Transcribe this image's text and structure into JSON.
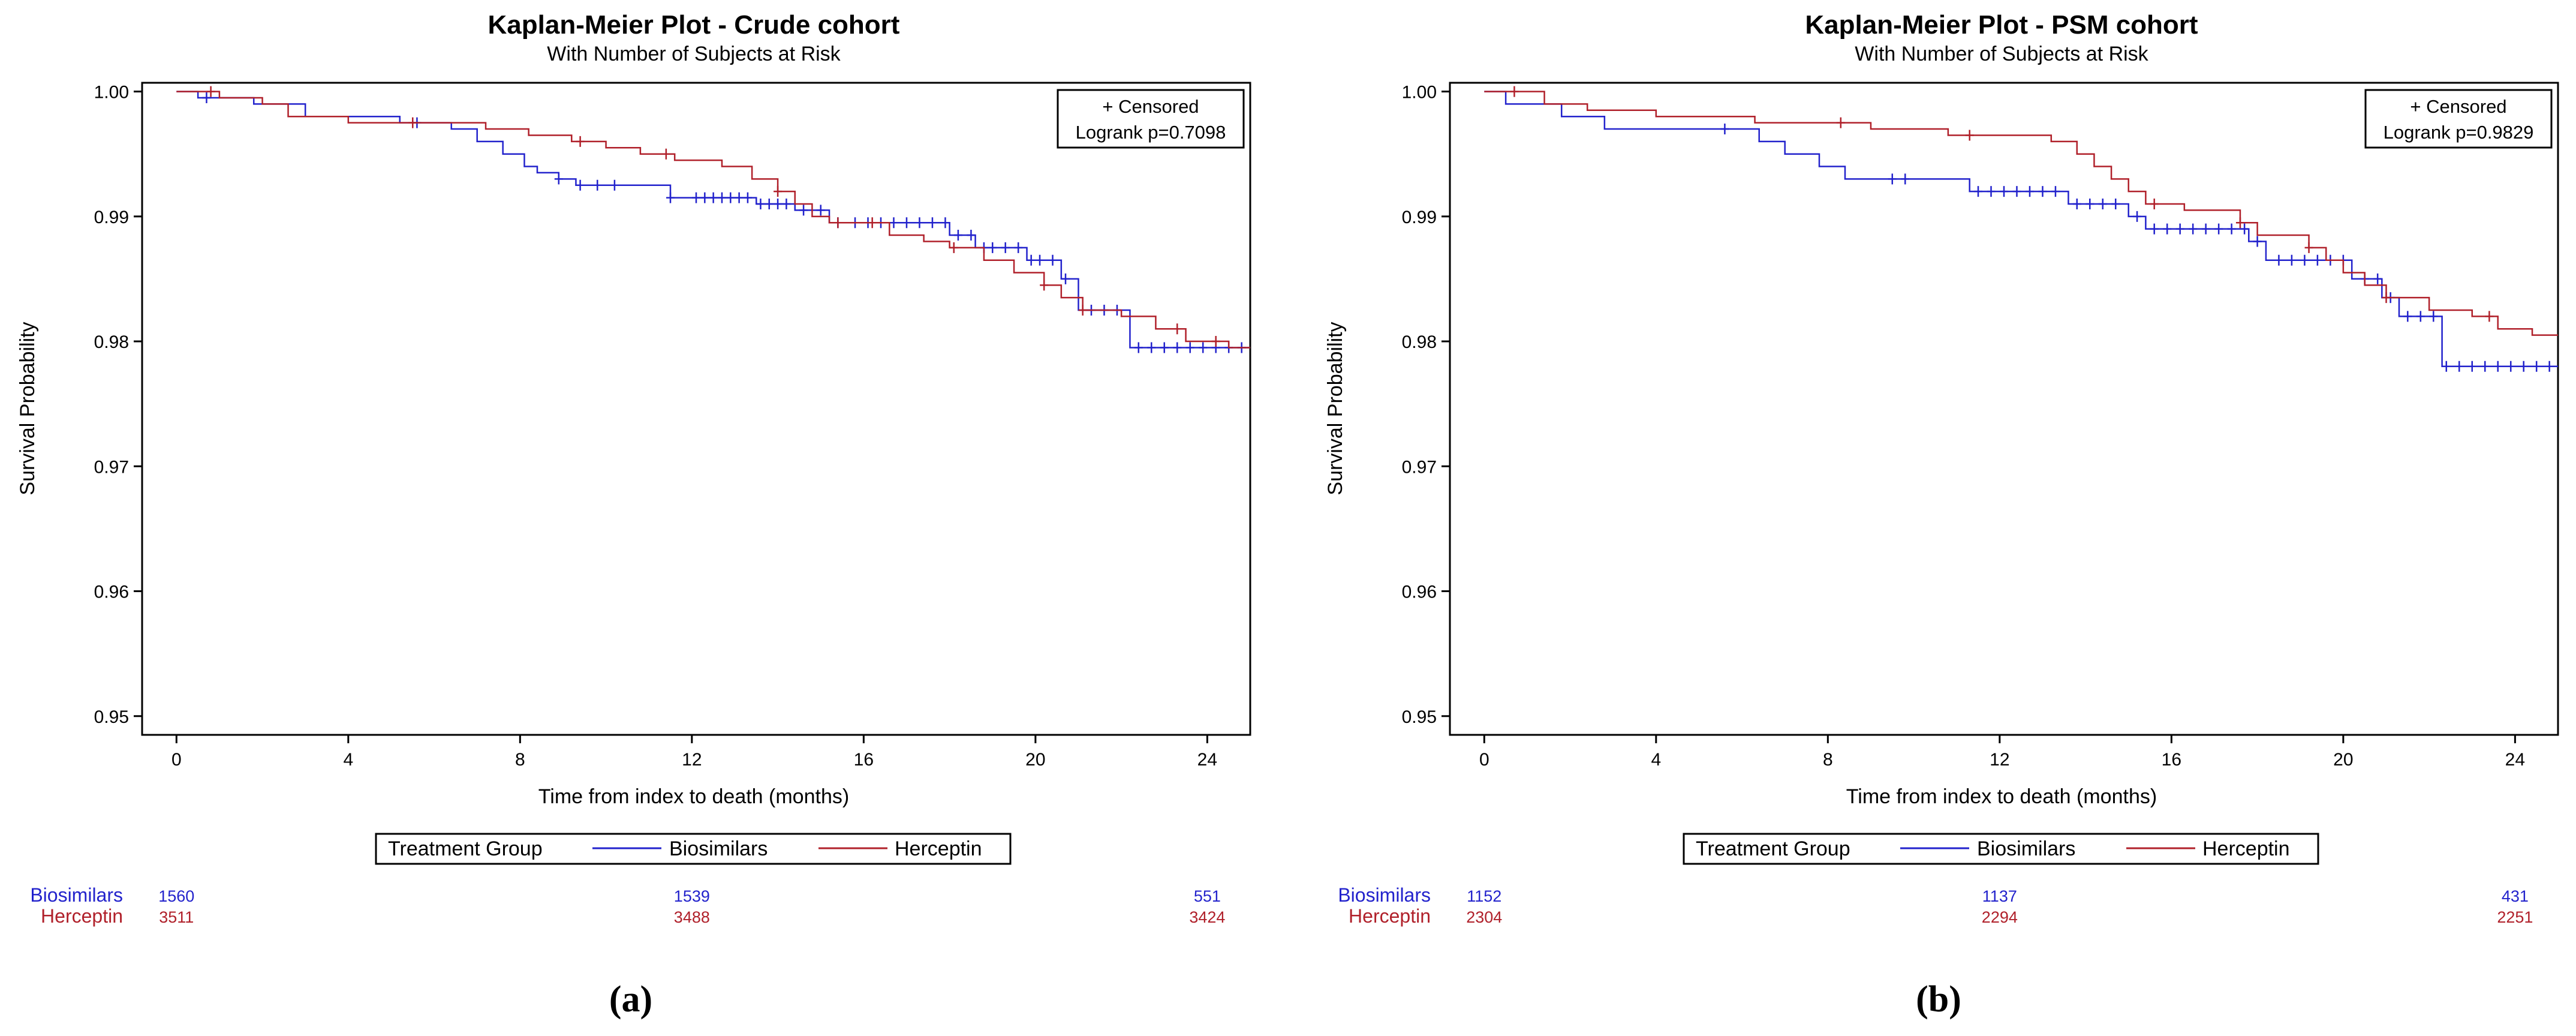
{
  "colors": {
    "biosimilars": "#2222cc",
    "herceptin": "#b0202a",
    "axis": "#000000"
  },
  "chart_data": [
    {
      "panel_label": "(a)",
      "type": "line",
      "title": "Kaplan-Meier Plot - Crude cohort",
      "subtitle": "With Number of Subjects at Risk",
      "xlabel": "Time from index to death (months)",
      "ylabel": "Survival Probability",
      "xlim": [
        -0.8,
        25
      ],
      "ylim": [
        0.9485,
        1.0007
      ],
      "xticks": [
        0,
        4,
        8,
        12,
        16,
        20,
        24
      ],
      "yticks": [
        1.0,
        0.99,
        0.98,
        0.97,
        0.96,
        0.95
      ],
      "ytick_labels": [
        "1.00",
        "0.99",
        "0.98",
        "0.97",
        "0.96",
        "0.95"
      ],
      "stats_box": {
        "censored_label": "+ Censored",
        "logrank": "Logrank p=0.7098"
      },
      "legend": {
        "title": "Treatment Group",
        "entries": [
          "Biosimilars",
          "Herceptin"
        ]
      },
      "series": [
        {
          "name": "Biosimilars",
          "steps": [
            [
              0,
              1.0
            ],
            [
              0.5,
              0.9995
            ],
            [
              1.8,
              0.999
            ],
            [
              3,
              0.998
            ],
            [
              5.2,
              0.9975
            ],
            [
              6.4,
              0.997
            ],
            [
              7,
              0.996
            ],
            [
              7.6,
              0.995
            ],
            [
              8.1,
              0.994
            ],
            [
              8.4,
              0.9935
            ],
            [
              8.9,
              0.993
            ],
            [
              9.3,
              0.9925
            ],
            [
              11.5,
              0.9915
            ],
            [
              13.5,
              0.991
            ],
            [
              14.4,
              0.9905
            ],
            [
              15.2,
              0.9895
            ],
            [
              18,
              0.9885
            ],
            [
              18.6,
              0.9875
            ],
            [
              19.8,
              0.9865
            ],
            [
              20.6,
              0.985
            ],
            [
              21,
              0.9825
            ],
            [
              22.2,
              0.9795
            ],
            [
              25,
              0.9795
            ]
          ],
          "censor_times": [
            0.7,
            5.6,
            8.9,
            9.4,
            9.8,
            10.2,
            11.5,
            12.1,
            12.3,
            12.5,
            12.7,
            12.9,
            13.1,
            13.3,
            13.6,
            13.8,
            14,
            14.2,
            14.6,
            15,
            15.4,
            15.8,
            16.1,
            16.4,
            16.7,
            17,
            17.3,
            17.6,
            17.9,
            18.2,
            18.5,
            18.8,
            19,
            19.3,
            19.6,
            19.9,
            20.1,
            20.4,
            20.7,
            21.3,
            21.6,
            21.9,
            22.4,
            22.7,
            23,
            23.3,
            23.6,
            23.9,
            24.2,
            24.5,
            24.8
          ]
        },
        {
          "name": "Herceptin",
          "steps": [
            [
              0,
              1.0
            ],
            [
              1,
              0.9995
            ],
            [
              2,
              0.999
            ],
            [
              2.6,
              0.998
            ],
            [
              4,
              0.9975
            ],
            [
              6,
              0.9975
            ],
            [
              7.2,
              0.997
            ],
            [
              8.2,
              0.9965
            ],
            [
              9.2,
              0.996
            ],
            [
              10,
              0.9955
            ],
            [
              10.8,
              0.995
            ],
            [
              11.6,
              0.9945
            ],
            [
              12.7,
              0.994
            ],
            [
              13.4,
              0.993
            ],
            [
              14,
              0.992
            ],
            [
              14.4,
              0.991
            ],
            [
              14.8,
              0.99
            ],
            [
              15.2,
              0.9895
            ],
            [
              16.6,
              0.9885
            ],
            [
              17.4,
              0.988
            ],
            [
              18,
              0.9875
            ],
            [
              18.8,
              0.9865
            ],
            [
              19.5,
              0.9855
            ],
            [
              20.2,
              0.9845
            ],
            [
              20.6,
              0.9835
            ],
            [
              21.1,
              0.9825
            ],
            [
              22,
              0.982
            ],
            [
              22.8,
              0.981
            ],
            [
              23.5,
              0.98
            ],
            [
              24.5,
              0.9795
            ],
            [
              25,
              0.9795
            ]
          ],
          "censor_times": [
            0.8,
            5.5,
            9.4,
            11.4,
            14,
            15.4,
            16.2,
            18.1,
            20.2,
            21.1,
            23.3,
            24.2
          ]
        }
      ],
      "risk_table": {
        "times": [
          0,
          12,
          24
        ],
        "rows": [
          {
            "group": "Biosimilars",
            "counts": [
              "1560",
              "1539",
              "551"
            ]
          },
          {
            "group": "Herceptin",
            "counts": [
              "3511",
              "3488",
              "3424"
            ]
          }
        ]
      }
    },
    {
      "panel_label": "(b)",
      "type": "line",
      "title": "Kaplan-Meier Plot - PSM cohort",
      "subtitle": "With Number of Subjects at Risk",
      "xlabel": "Time from index to death (months)",
      "ylabel": "Survival Probability",
      "xlim": [
        -0.8,
        25
      ],
      "ylim": [
        0.9485,
        1.0007
      ],
      "xticks": [
        0,
        4,
        8,
        12,
        16,
        20,
        24
      ],
      "yticks": [
        1.0,
        0.99,
        0.98,
        0.97,
        0.96,
        0.95
      ],
      "ytick_labels": [
        "1.00",
        "0.99",
        "0.98",
        "0.97",
        "0.96",
        "0.95"
      ],
      "stats_box": {
        "censored_label": "+ Censored",
        "logrank": "Logrank p=0.9829"
      },
      "legend": {
        "title": "Treatment Group",
        "entries": [
          "Biosimilars",
          "Herceptin"
        ]
      },
      "series": [
        {
          "name": "Biosimilars",
          "steps": [
            [
              0,
              1.0
            ],
            [
              0.5,
              0.999
            ],
            [
              1.8,
              0.998
            ],
            [
              2.8,
              0.997
            ],
            [
              6.4,
              0.996
            ],
            [
              7,
              0.995
            ],
            [
              7.8,
              0.994
            ],
            [
              8.4,
              0.993
            ],
            [
              11.3,
              0.992
            ],
            [
              13.6,
              0.991
            ],
            [
              15,
              0.99
            ],
            [
              15.4,
              0.989
            ],
            [
              17.8,
              0.988
            ],
            [
              18.2,
              0.9865
            ],
            [
              20.2,
              0.985
            ],
            [
              20.9,
              0.9835
            ],
            [
              21.3,
              0.982
            ],
            [
              22.3,
              0.978
            ],
            [
              25,
              0.978
            ]
          ],
          "censor_times": [
            5.6,
            9.5,
            9.8,
            11.5,
            11.8,
            12.1,
            12.4,
            12.7,
            13,
            13.3,
            13.8,
            14.1,
            14.4,
            14.7,
            15.2,
            15.6,
            15.9,
            16.2,
            16.5,
            16.8,
            17.1,
            17.4,
            17.7,
            18,
            18.5,
            18.8,
            19.1,
            19.4,
            19.7,
            20,
            20.5,
            20.8,
            21.1,
            21.5,
            21.8,
            22.1,
            22.4,
            22.7,
            23,
            23.3,
            23.6,
            23.9,
            24.2,
            24.5,
            24.8
          ]
        },
        {
          "name": "Herceptin",
          "steps": [
            [
              0,
              1.0
            ],
            [
              1.4,
              0.999
            ],
            [
              2.4,
              0.9985
            ],
            [
              4,
              0.998
            ],
            [
              6.3,
              0.9975
            ],
            [
              9,
              0.997
            ],
            [
              10.8,
              0.9965
            ],
            [
              13.2,
              0.996
            ],
            [
              13.8,
              0.995
            ],
            [
              14.2,
              0.994
            ],
            [
              14.6,
              0.993
            ],
            [
              15,
              0.992
            ],
            [
              15.4,
              0.991
            ],
            [
              16.3,
              0.9905
            ],
            [
              17.6,
              0.9895
            ],
            [
              18,
              0.9885
            ],
            [
              19.2,
              0.9875
            ],
            [
              19.6,
              0.9865
            ],
            [
              20,
              0.9855
            ],
            [
              20.5,
              0.9845
            ],
            [
              21,
              0.9835
            ],
            [
              22,
              0.9825
            ],
            [
              23,
              0.982
            ],
            [
              23.6,
              0.981
            ],
            [
              24.4,
              0.9805
            ],
            [
              25,
              0.9805
            ]
          ],
          "censor_times": [
            0.7,
            8.3,
            11.3,
            15.6,
            17.6,
            19.2,
            21,
            23.4
          ]
        }
      ],
      "risk_table": {
        "times": [
          0,
          12,
          24
        ],
        "rows": [
          {
            "group": "Biosimilars",
            "counts": [
              "1152",
              "1137",
              "431"
            ]
          },
          {
            "group": "Herceptin",
            "counts": [
              "2304",
              "2294",
              "2251"
            ]
          }
        ]
      }
    }
  ]
}
